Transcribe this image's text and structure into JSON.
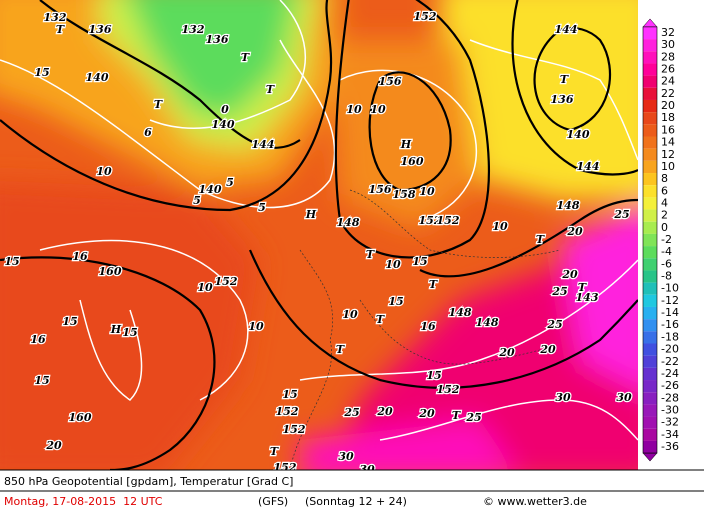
{
  "header": {
    "title": "850 hPa Geopotential [gpdam], Temperatur [Grad C]"
  },
  "footer": {
    "date": "Montag, 17-08-2015  12 UTC",
    "model": "(GFS)",
    "run": "(Sonntag 12 + 24)",
    "credit": "© www.wetter3.de"
  },
  "colorbar": {
    "levels": [
      32,
      30,
      28,
      26,
      24,
      22,
      20,
      18,
      16,
      14,
      12,
      10,
      8,
      6,
      4,
      2,
      0,
      -2,
      -4,
      -6,
      -8,
      -10,
      -12,
      -14,
      -16,
      -18,
      -20,
      -22,
      -24,
      -26,
      -28,
      -30,
      -32,
      -34,
      -36
    ],
    "colors": [
      "#ff33ff",
      "#ff22dd",
      "#ff11bb",
      "#ff0099",
      "#f00070",
      "#e8103a",
      "#e62a14",
      "#e8481a",
      "#ec5c1a",
      "#f0721c",
      "#f48a1e",
      "#f8a41e",
      "#fcc41e",
      "#fce02a",
      "#f4f03a",
      "#d0f048",
      "#a8ec50",
      "#80e458",
      "#5cdc5c",
      "#40d070",
      "#28c488",
      "#20c0b8",
      "#20c8e0",
      "#28b0f0",
      "#3090f0",
      "#3870e8",
      "#4050e0",
      "#5040d8",
      "#6430d0",
      "#7828c8",
      "#8820c0",
      "#9818b8",
      "#a010b0",
      "#a808a0",
      "#9000a0"
    ]
  },
  "map_labels": [
    "132",
    "T",
    "136",
    "140",
    "15",
    "T",
    "6",
    "10",
    "140",
    "5",
    "132",
    "136",
    "T",
    "T",
    "140",
    "144",
    "0",
    "5",
    "5",
    "152",
    "156",
    "10",
    "10",
    "H",
    "160",
    "156",
    "158",
    "10",
    "152",
    "152",
    "148",
    "H",
    "T",
    "10",
    "15",
    "T",
    "144",
    "T",
    "136",
    "140",
    "144",
    "148",
    "25",
    "20",
    "T",
    "10",
    "15",
    "16",
    "160",
    "152",
    "10",
    "16",
    "15",
    "H",
    "15",
    "15",
    "160",
    "20",
    "10",
    "T",
    "10",
    "T",
    "15",
    "148",
    "148",
    "16",
    "20",
    "25",
    "20",
    "T",
    "143",
    "25",
    "20",
    "15",
    "152",
    "15",
    "152",
    "25",
    "20",
    "20",
    "T",
    "25",
    "30",
    "30",
    "152",
    "T",
    "152",
    "30",
    "30"
  ]
}
